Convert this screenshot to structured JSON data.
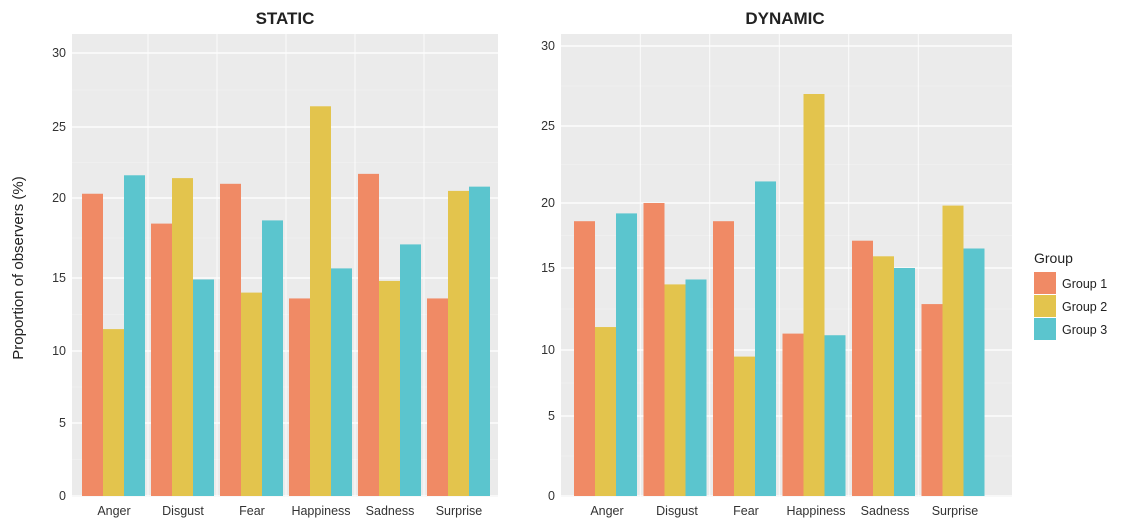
{
  "chart_data": [
    {
      "type": "bar",
      "title": "STATIC",
      "categories": [
        "Anger",
        "Disgust",
        "Fear",
        "Happiness",
        "Sadness",
        "Surprise"
      ],
      "series": [
        {
          "name": "Group 1",
          "values": [
            20.3,
            18.4,
            21.0,
            13.6,
            21.7,
            13.6
          ]
        },
        {
          "name": "Group 2",
          "values": [
            11.5,
            21.4,
            14.0,
            26.4,
            14.8,
            20.5
          ]
        },
        {
          "name": "Group 3",
          "values": [
            21.6,
            14.9,
            18.6,
            15.6,
            17.1,
            20.8
          ]
        }
      ],
      "yticks": [
        "0",
        "5",
        "10",
        "15",
        "20",
        "25",
        "30"
      ],
      "ylabel": "Proportion of observers (%)",
      "grid": true
    },
    {
      "type": "bar",
      "title": "DYNAMIC",
      "categories": [
        "Anger",
        "Disgust",
        "Fear",
        "Happiness",
        "Sadness",
        "Surprise"
      ],
      "series": [
        {
          "name": "Group 1",
          "values": [
            18.6,
            20.0,
            18.6,
            11.0,
            17.1,
            12.8
          ]
        },
        {
          "name": "Group 2",
          "values": [
            11.4,
            14.0,
            9.5,
            27.0,
            15.9,
            19.8
          ]
        },
        {
          "name": "Group 3",
          "values": [
            19.2,
            14.3,
            21.4,
            10.9,
            15.0,
            16.5
          ]
        }
      ],
      "yticks": [
        "0",
        "5",
        "10",
        "15",
        "20",
        "25",
        "30"
      ],
      "ylabel": "",
      "grid": true
    }
  ],
  "legend": {
    "title": "Group",
    "placement": "right",
    "items": [
      "Group 1",
      "Group 2",
      "Group 3"
    ]
  },
  "colors": {
    "series": [
      "#F08A65",
      "#E3C44D",
      "#5BC5CE"
    ],
    "panel_background": "#EBEBEB",
    "gridline": "#FFFFFF"
  }
}
